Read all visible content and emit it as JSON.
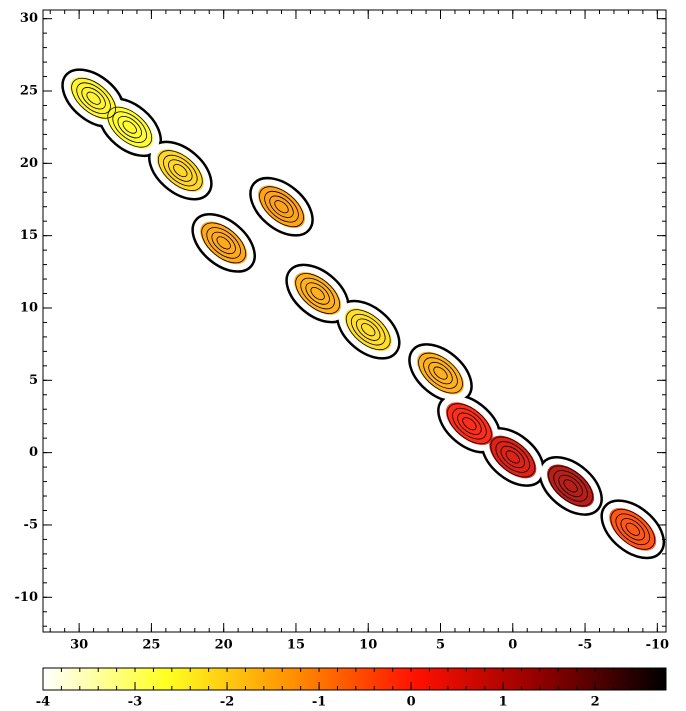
{
  "chart_data": {
    "type": "contour",
    "xlim": [
      32.5,
      -10.6
    ],
    "ylim": [
      -12.4,
      30.6
    ],
    "xticks": [
      30,
      25,
      20,
      15,
      10,
      5,
      0,
      -5,
      -10
    ],
    "yticks": [
      -10,
      -5,
      0,
      5,
      10,
      15,
      20,
      25,
      30
    ],
    "components": {
      "x": [
        29,
        26.5,
        23,
        20,
        16,
        13.5,
        10,
        5,
        3,
        0,
        -4,
        -8.3
      ],
      "y": [
        24.5,
        22.5,
        19.5,
        14.5,
        17,
        11,
        8.5,
        5.5,
        2,
        -0.3,
        -2.3,
        -5.3
      ],
      "values": [
        -2.5,
        -2.6,
        -2.1,
        -1.5,
        -1.4,
        -1.6,
        -2.2,
        -1.6,
        0,
        0.5,
        1,
        -0.5
      ]
    },
    "colorbar": {
      "lim": [
        -4,
        2.77
      ],
      "ticks": [
        -4,
        -3,
        -2,
        -1,
        0,
        1,
        2
      ],
      "colormap": [
        "#ffffff",
        "#ffff20",
        "#ff9000",
        "#ff1000",
        "#900000",
        "#000000"
      ]
    }
  }
}
